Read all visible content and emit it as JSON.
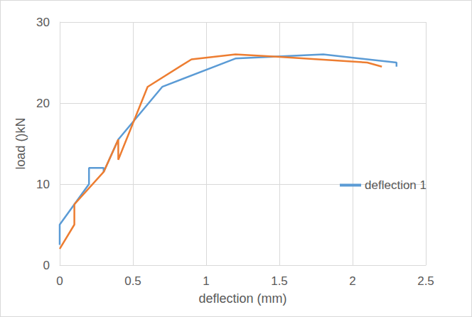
{
  "chart_data": {
    "type": "line",
    "x_label": "deflection (mm)",
    "y_label": "load ()kN",
    "xlim": [
      0,
      2.5
    ],
    "xticks": [
      0,
      0.5,
      1,
      1.5,
      2,
      2.5
    ],
    "ylim": [
      0,
      30
    ],
    "yticks": [
      0,
      10,
      20,
      30
    ],
    "grid": true,
    "legend": "right",
    "series": [
      {
        "name": "deflection 1",
        "color": "#5b9bd5",
        "x": [
          0,
          0,
          0.1,
          0.2,
          0.2,
          0.3,
          0.3,
          0.4,
          0.7,
          1.2,
          1.8,
          2.3,
          2.3
        ],
        "values": [
          2.5,
          5,
          7.5,
          10,
          12,
          12,
          11.5,
          15.5,
          22,
          25.5,
          26,
          25,
          24.5
        ]
      },
      {
        "color": "#ed7d31",
        "x": [
          0,
          0.1,
          0.1,
          0.3,
          0.4,
          0.4,
          0.4,
          0.6,
          0.9,
          1.2,
          1.5,
          2.1,
          2.2
        ],
        "values": [
          2,
          5,
          7.5,
          11.5,
          15.5,
          14.5,
          13,
          22,
          25.4,
          26,
          25.7,
          25,
          24.5
        ]
      }
    ]
  }
}
